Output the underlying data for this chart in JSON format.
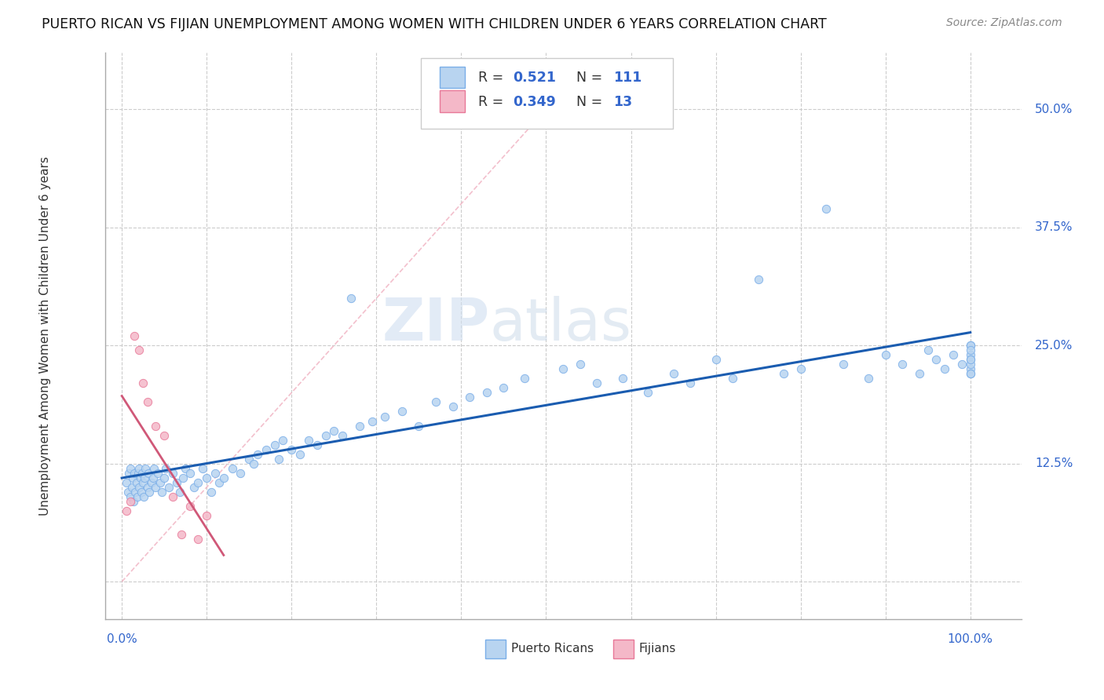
{
  "title": "PUERTO RICAN VS FIJIAN UNEMPLOYMENT AMONG WOMEN WITH CHILDREN UNDER 6 YEARS CORRELATION CHART",
  "source": "Source: ZipAtlas.com",
  "ylabel": "Unemployment Among Women with Children Under 6 years",
  "watermark": "ZIPatlas",
  "pr_R": 0.521,
  "pr_N": 111,
  "fj_R": 0.349,
  "fj_N": 13,
  "pr_color": "#b8d4f0",
  "pr_edge": "#7aaee8",
  "fj_color": "#f4b8c8",
  "fj_edge": "#e87898",
  "pr_line_color": "#1a5cb0",
  "fj_line_color": "#d05878",
  "ref_line_color": "#f0b0c0",
  "grid_color": "#cccccc",
  "y_ticks": [
    0.0,
    0.125,
    0.25,
    0.375,
    0.5
  ],
  "y_tick_labels": [
    "",
    "12.5%",
    "25.0%",
    "37.5%",
    "50.0%"
  ],
  "x_ticks": [
    0.0,
    0.1,
    0.2,
    0.3,
    0.4,
    0.5,
    0.6,
    0.7,
    0.8,
    0.9,
    1.0
  ],
  "ylim": [
    -0.04,
    0.56
  ],
  "xlim": [
    -0.02,
    1.06
  ],
  "pr_x": [
    0.005,
    0.007,
    0.008,
    0.01,
    0.01,
    0.012,
    0.013,
    0.014,
    0.015,
    0.016,
    0.017,
    0.018,
    0.019,
    0.02,
    0.02,
    0.022,
    0.023,
    0.024,
    0.025,
    0.026,
    0.027,
    0.028,
    0.03,
    0.031,
    0.032,
    0.035,
    0.037,
    0.038,
    0.04,
    0.042,
    0.045,
    0.047,
    0.05,
    0.052,
    0.055,
    0.06,
    0.065,
    0.068,
    0.072,
    0.075,
    0.08,
    0.085,
    0.09,
    0.095,
    0.1,
    0.105,
    0.11,
    0.115,
    0.12,
    0.13,
    0.14,
    0.15,
    0.155,
    0.16,
    0.17,
    0.18,
    0.185,
    0.19,
    0.2,
    0.21,
    0.22,
    0.23,
    0.24,
    0.25,
    0.26,
    0.27,
    0.28,
    0.295,
    0.31,
    0.33,
    0.35,
    0.37,
    0.39,
    0.41,
    0.43,
    0.45,
    0.475,
    0.5,
    0.52,
    0.54,
    0.56,
    0.59,
    0.62,
    0.65,
    0.67,
    0.7,
    0.72,
    0.75,
    0.78,
    0.8,
    0.83,
    0.85,
    0.88,
    0.9,
    0.92,
    0.94,
    0.95,
    0.96,
    0.97,
    0.98,
    0.99,
    1.0,
    1.0,
    1.0,
    1.0,
    1.0,
    1.0,
    1.0,
    1.0,
    1.0,
    1.0
  ],
  "pr_y": [
    0.105,
    0.095,
    0.115,
    0.09,
    0.12,
    0.1,
    0.11,
    0.085,
    0.115,
    0.095,
    0.105,
    0.09,
    0.115,
    0.1,
    0.12,
    0.11,
    0.095,
    0.115,
    0.105,
    0.09,
    0.11,
    0.12,
    0.1,
    0.115,
    0.095,
    0.105,
    0.11,
    0.12,
    0.1,
    0.115,
    0.105,
    0.095,
    0.11,
    0.12,
    0.1,
    0.115,
    0.105,
    0.095,
    0.11,
    0.12,
    0.115,
    0.1,
    0.105,
    0.12,
    0.11,
    0.095,
    0.115,
    0.105,
    0.11,
    0.12,
    0.115,
    0.13,
    0.125,
    0.135,
    0.14,
    0.145,
    0.13,
    0.15,
    0.14,
    0.135,
    0.15,
    0.145,
    0.155,
    0.16,
    0.155,
    0.3,
    0.165,
    0.17,
    0.175,
    0.18,
    0.165,
    0.19,
    0.185,
    0.195,
    0.2,
    0.205,
    0.215,
    0.49,
    0.225,
    0.23,
    0.21,
    0.215,
    0.2,
    0.22,
    0.21,
    0.235,
    0.215,
    0.32,
    0.22,
    0.225,
    0.395,
    0.23,
    0.215,
    0.24,
    0.23,
    0.22,
    0.245,
    0.235,
    0.225,
    0.24,
    0.23,
    0.25,
    0.225,
    0.24,
    0.235,
    0.22,
    0.25,
    0.23,
    0.245,
    0.235,
    0.22
  ],
  "fj_x": [
    0.005,
    0.01,
    0.015,
    0.02,
    0.025,
    0.03,
    0.04,
    0.05,
    0.06,
    0.07,
    0.08,
    0.09,
    0.1
  ],
  "fj_y": [
    0.075,
    0.085,
    0.26,
    0.245,
    0.21,
    0.19,
    0.165,
    0.155,
    0.09,
    0.05,
    0.08,
    0.045,
    0.07
  ]
}
